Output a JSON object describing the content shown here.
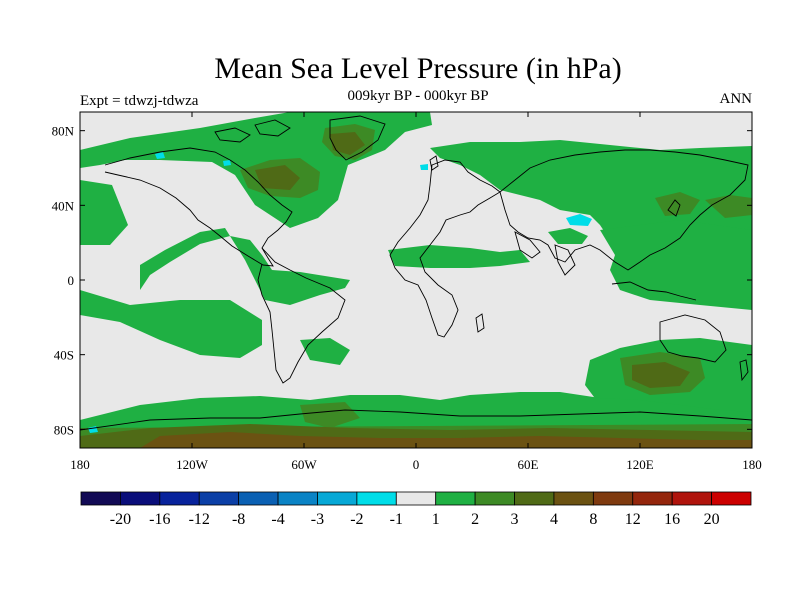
{
  "title": "Mean Sea Level Pressure (in hPa)",
  "subtitle": "009kyr BP - 000kyr BP",
  "left_label": "Expt = tdwzj-tdwza",
  "right_label": "ANN",
  "x_ticks": [
    "180",
    "120W",
    "60W",
    "0",
    "60E",
    "120E",
    "180"
  ],
  "y_ticks": [
    "80N",
    "40N",
    "0",
    "40S",
    "80S"
  ],
  "colorbar": {
    "labels": [
      "-20",
      "-16",
      "-12",
      "-8",
      "-4",
      "-3",
      "-2",
      "-1",
      "1",
      "2",
      "3",
      "4",
      "8",
      "12",
      "16",
      "20"
    ],
    "colors": [
      "#120a55",
      "#0a0e7a",
      "#08239c",
      "#0b3fa6",
      "#0a60b3",
      "#0a83c5",
      "#07a8d6",
      "#00dde8",
      "#e8e8e8",
      "#1fb043",
      "#3d8a25",
      "#4f6a16",
      "#6b5212",
      "#7f3a0f",
      "#94260c",
      "#b0140c",
      "#cc0000"
    ]
  },
  "colors": {
    "background_land_sea": "#e8e8e8",
    "pos_1_2": "#1fb043",
    "pos_2_3": "#3d8a25",
    "pos_3_4": "#4f6a16",
    "pos_4_8": "#6b5212",
    "neg_1_2": "#00dde8",
    "coast": "#000000"
  }
}
